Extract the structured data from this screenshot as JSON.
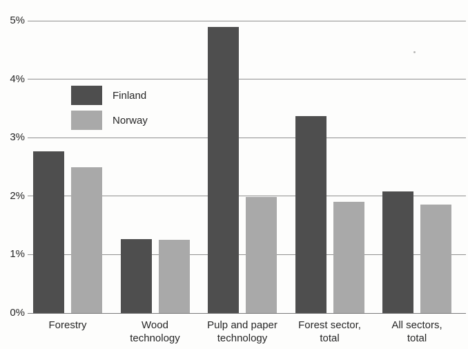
{
  "chart_data": {
    "type": "bar",
    "title": "",
    "xlabel": "",
    "ylabel": "",
    "categories": [
      "Forestry",
      "Wood technology",
      "Pulp and paper technology",
      "Forest sector, total",
      "All sectors, total"
    ],
    "category_label_lines": [
      [
        "Forestry"
      ],
      [
        "Wood",
        "technology"
      ],
      [
        "Pulp and paper",
        "technology"
      ],
      [
        "Forest sector,",
        "total"
      ],
      [
        "All sectors,",
        "total"
      ]
    ],
    "series": [
      {
        "name": "Finland",
        "color": "#4e4e4e",
        "values": [
          2.77,
          1.26,
          4.89,
          3.37,
          2.08
        ]
      },
      {
        "name": "Norway",
        "color": "#a9a9a9",
        "values": [
          2.5,
          1.25,
          1.98,
          1.9,
          1.86
        ]
      }
    ],
    "ylim": [
      0,
      5
    ],
    "ytick_labels": [
      "0%",
      "1%",
      "2%",
      "3%",
      "4%",
      "5%"
    ],
    "grid": "horizontal",
    "legend_position": "inside-upper-left",
    "colors": {
      "gridline": "#8f8f8f",
      "text": "#262626",
      "background": "#fdfdfc"
    }
  }
}
